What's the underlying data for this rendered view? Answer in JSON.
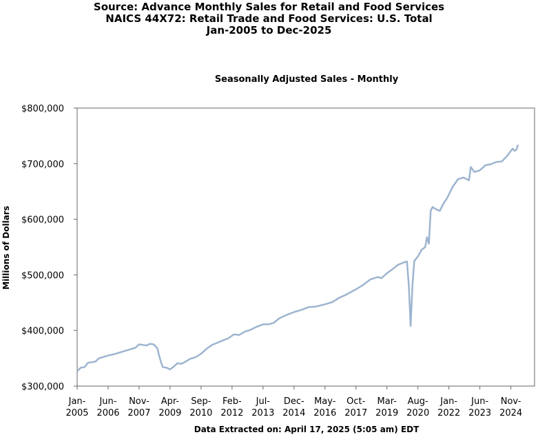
{
  "header": {
    "line1": "Source: Advance Monthly Sales for Retail and Food Services",
    "line2": "NAICS 44X72: Retail Trade and Food Services: U.S. Total",
    "line3": "Jan-2005 to Dec-2025"
  },
  "footer": "Data Extracted on: April 17, 2025 (5:05 am) EDT",
  "colors": {
    "line": "#9db4cf",
    "frame": "#666666"
  },
  "chart_data": {
    "type": "line",
    "title": "Seasonally Adjusted Sales - Monthly",
    "xlabel": "",
    "ylabel": "Millions of Dollars",
    "ylim": [
      300000,
      800000
    ],
    "yticks": [
      "$300,000",
      "$400,000",
      "$500,000",
      "$600,000",
      "$700,000",
      "$800,000"
    ],
    "xrange": [
      "2005-01",
      "2025-12"
    ],
    "xticks": [
      {
        "date": "2005-01",
        "line1": "Jan-",
        "line2": "2005"
      },
      {
        "date": "2006-06",
        "line1": "Jun-",
        "line2": "2006"
      },
      {
        "date": "2007-11",
        "line1": "Nov-",
        "line2": "2007"
      },
      {
        "date": "2009-04",
        "line1": "Apr-",
        "line2": "2009"
      },
      {
        "date": "2010-09",
        "line1": "Sep-",
        "line2": "2010"
      },
      {
        "date": "2012-02",
        "line1": "Feb-",
        "line2": "2012"
      },
      {
        "date": "2013-07",
        "line1": "Jul-",
        "line2": "2013"
      },
      {
        "date": "2014-12",
        "line1": "Dec-",
        "line2": "2014"
      },
      {
        "date": "2016-05",
        "line1": "May-",
        "line2": "2016"
      },
      {
        "date": "2017-10",
        "line1": "Oct-",
        "line2": "2017"
      },
      {
        "date": "2019-03",
        "line1": "Mar-",
        "line2": "2019"
      },
      {
        "date": "2020-08",
        "line1": "Aug-",
        "line2": "2020"
      },
      {
        "date": "2022-01",
        "line1": "Jan-",
        "line2": "2022"
      },
      {
        "date": "2023-06",
        "line1": "Jun-",
        "line2": "2023"
      },
      {
        "date": "2024-11",
        "line1": "Nov-",
        "line2": "2024"
      }
    ],
    "grid": false,
    "series": [
      {
        "points": [
          [
            "2005-01",
            327000
          ],
          [
            "2005-03",
            333000
          ],
          [
            "2005-05",
            334000
          ],
          [
            "2005-07",
            342000
          ],
          [
            "2005-09",
            343000
          ],
          [
            "2005-11",
            344000
          ],
          [
            "2006-01",
            350000
          ],
          [
            "2006-03",
            352000
          ],
          [
            "2006-06",
            355000
          ],
          [
            "2006-09",
            357000
          ],
          [
            "2006-12",
            360000
          ],
          [
            "2007-03",
            363000
          ],
          [
            "2007-06",
            366000
          ],
          [
            "2007-09",
            369000
          ],
          [
            "2007-11",
            375000
          ],
          [
            "2008-01",
            374000
          ],
          [
            "2008-03",
            373000
          ],
          [
            "2008-05",
            376000
          ],
          [
            "2008-07",
            375000
          ],
          [
            "2008-09",
            368000
          ],
          [
            "2008-10",
            355000
          ],
          [
            "2008-11",
            343000
          ],
          [
            "2008-12",
            334000
          ],
          [
            "2009-02",
            333000
          ],
          [
            "2009-04",
            330000
          ],
          [
            "2009-06",
            335000
          ],
          [
            "2009-08",
            341000
          ],
          [
            "2009-10",
            340000
          ],
          [
            "2009-12",
            343000
          ],
          [
            "2010-03",
            349000
          ],
          [
            "2010-06",
            352000
          ],
          [
            "2010-09",
            358000
          ],
          [
            "2010-12",
            367000
          ],
          [
            "2011-03",
            374000
          ],
          [
            "2011-06",
            378000
          ],
          [
            "2011-09",
            382000
          ],
          [
            "2011-12",
            386000
          ],
          [
            "2012-03",
            393000
          ],
          [
            "2012-06",
            392000
          ],
          [
            "2012-09",
            398000
          ],
          [
            "2012-12",
            401000
          ],
          [
            "2013-03",
            406000
          ],
          [
            "2013-07",
            411000
          ],
          [
            "2013-10",
            411000
          ],
          [
            "2014-01",
            414000
          ],
          [
            "2014-04",
            422000
          ],
          [
            "2014-08",
            428000
          ],
          [
            "2014-12",
            433000
          ],
          [
            "2015-04",
            437000
          ],
          [
            "2015-08",
            442000
          ],
          [
            "2015-12",
            443000
          ],
          [
            "2016-05",
            447000
          ],
          [
            "2016-09",
            451000
          ],
          [
            "2017-01",
            459000
          ],
          [
            "2017-05",
            465000
          ],
          [
            "2017-10",
            474000
          ],
          [
            "2018-02",
            482000
          ],
          [
            "2018-06",
            492000
          ],
          [
            "2018-10",
            496000
          ],
          [
            "2018-12",
            494000
          ],
          [
            "2019-03",
            503000
          ],
          [
            "2019-06",
            510000
          ],
          [
            "2019-09",
            518000
          ],
          [
            "2019-12",
            522000
          ],
          [
            "2020-02",
            524000
          ],
          [
            "2020-03",
            480000
          ],
          [
            "2020-04",
            408000
          ],
          [
            "2020-05",
            482000
          ],
          [
            "2020-06",
            525000
          ],
          [
            "2020-08",
            533000
          ],
          [
            "2020-10",
            545000
          ],
          [
            "2020-12",
            550000
          ],
          [
            "2021-01",
            568000
          ],
          [
            "2021-02",
            556000
          ],
          [
            "2021-03",
            615000
          ],
          [
            "2021-04",
            622000
          ],
          [
            "2021-06",
            618000
          ],
          [
            "2021-08",
            615000
          ],
          [
            "2021-10",
            628000
          ],
          [
            "2021-12",
            638000
          ],
          [
            "2022-03",
            658000
          ],
          [
            "2022-06",
            672000
          ],
          [
            "2022-09",
            675000
          ],
          [
            "2022-12",
            670000
          ],
          [
            "2023-01",
            694000
          ],
          [
            "2023-03",
            685000
          ],
          [
            "2023-06",
            688000
          ],
          [
            "2023-09",
            697000
          ],
          [
            "2023-12",
            699000
          ],
          [
            "2024-03",
            703000
          ],
          [
            "2024-06",
            704000
          ],
          [
            "2024-09",
            714000
          ],
          [
            "2024-11",
            723000
          ],
          [
            "2024-12",
            727000
          ],
          [
            "2025-01",
            723000
          ],
          [
            "2025-02",
            725000
          ],
          [
            "2025-03",
            734000
          ]
        ]
      }
    ]
  }
}
